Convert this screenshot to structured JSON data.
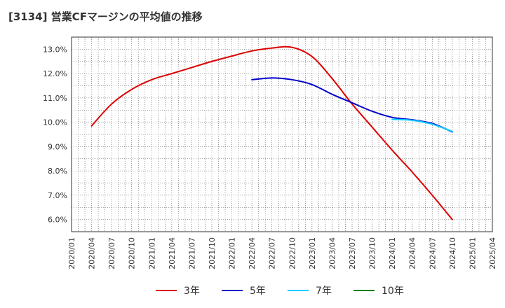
{
  "title": "[3134]  営業CFマージンの平均値の推移",
  "chart_data": {
    "type": "line",
    "title": "[3134]  営業CFマージンの平均値の推移",
    "ylim": [
      5.5,
      13.5
    ],
    "yticks": [
      "6.0%",
      "7.0%",
      "8.0%",
      "9.0%",
      "10.0%",
      "11.0%",
      "12.0%",
      "13.0%"
    ],
    "ytick_values": [
      6,
      7,
      8,
      9,
      10,
      11,
      12,
      13
    ],
    "x_categories": [
      "2020/01",
      "2020/04",
      "2020/07",
      "2020/10",
      "2021/01",
      "2021/04",
      "2021/07",
      "2021/10",
      "2022/01",
      "2022/04",
      "2022/07",
      "2022/10",
      "2023/01",
      "2023/04",
      "2023/07",
      "2023/10",
      "2024/01",
      "2024/04",
      "2024/07",
      "2024/10",
      "2025/01",
      "2025/04"
    ],
    "grid": true,
    "legend_position": "bottom",
    "series": [
      {
        "name": "3年",
        "color": "#dd0000",
        "points": [
          [
            "2020/04",
            9.85
          ],
          [
            "2020/07",
            10.75
          ],
          [
            "2020/10",
            11.35
          ],
          [
            "2021/01",
            11.75
          ],
          [
            "2021/04",
            12.0
          ],
          [
            "2021/07",
            12.25
          ],
          [
            "2021/10",
            12.5
          ],
          [
            "2022/01",
            12.72
          ],
          [
            "2022/04",
            12.93
          ],
          [
            "2022/07",
            13.05
          ],
          [
            "2022/10",
            13.08
          ],
          [
            "2023/01",
            12.7
          ],
          [
            "2023/04",
            11.8
          ],
          [
            "2023/07",
            10.75
          ],
          [
            "2023/10",
            9.8
          ],
          [
            "2024/01",
            8.85
          ],
          [
            "2024/04",
            7.95
          ],
          [
            "2024/07",
            7.0
          ],
          [
            "2024/10",
            6.0
          ]
        ]
      },
      {
        "name": "5年",
        "color": "#0000cc",
        "points": [
          [
            "2022/04",
            11.75
          ],
          [
            "2022/07",
            11.82
          ],
          [
            "2022/10",
            11.75
          ],
          [
            "2023/01",
            11.55
          ],
          [
            "2023/04",
            11.15
          ],
          [
            "2023/07",
            10.8
          ],
          [
            "2023/10",
            10.45
          ],
          [
            "2024/01",
            10.2
          ],
          [
            "2024/04",
            10.1
          ],
          [
            "2024/07",
            9.95
          ],
          [
            "2024/10",
            9.6
          ]
        ]
      },
      {
        "name": "7年",
        "color": "#00ccff",
        "points": [
          [
            "2024/01",
            10.12
          ],
          [
            "2024/04",
            10.08
          ],
          [
            "2024/07",
            9.92
          ],
          [
            "2024/10",
            9.62
          ]
        ]
      },
      {
        "name": "10年",
        "color": "#008000",
        "points": []
      }
    ]
  }
}
